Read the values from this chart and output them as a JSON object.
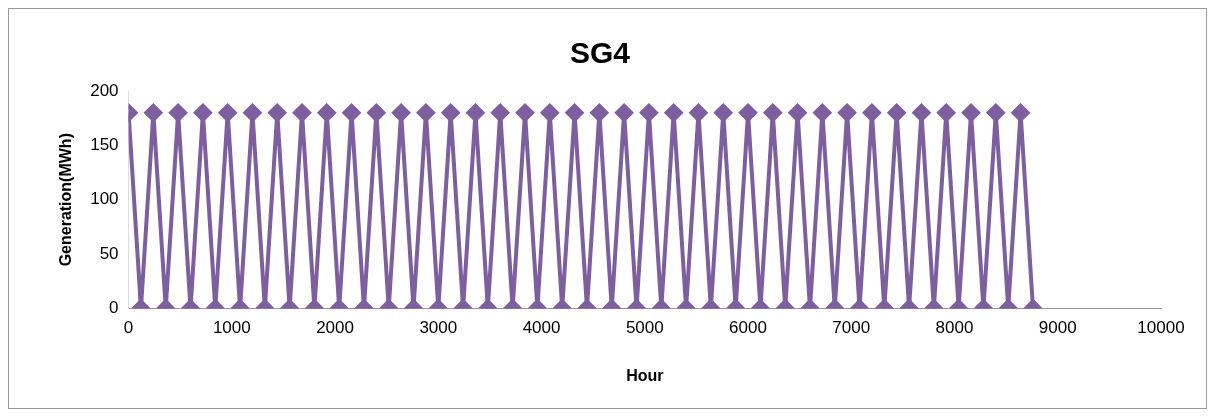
{
  "chart_data": {
    "type": "line",
    "title": "SG4",
    "xlabel": "Hour",
    "ylabel": "Generation(MWh)",
    "xlim": [
      0,
      10000
    ],
    "xticks": [
      0,
      1000,
      2000,
      3000,
      4000,
      5000,
      6000,
      7000,
      8000,
      9000,
      10000
    ],
    "ylim": [
      0,
      200
    ],
    "yticks": [
      0,
      50,
      100,
      150,
      200
    ],
    "grid": false,
    "legend": false,
    "marker": "diamond",
    "line_style": "solid",
    "series": [
      {
        "color": "#7d5fa0",
        "x": [
          0,
          120,
          240,
          360,
          480,
          600,
          720,
          840,
          960,
          1080,
          1200,
          1320,
          1440,
          1560,
          1680,
          1800,
          1920,
          2040,
          2160,
          2280,
          2400,
          2520,
          2640,
          2760,
          2880,
          3000,
          3120,
          3240,
          3360,
          3480,
          3600,
          3720,
          3840,
          3960,
          4080,
          4200,
          4320,
          4440,
          4560,
          4680,
          4800,
          4920,
          5040,
          5160,
          5280,
          5400,
          5520,
          5640,
          5760,
          5880,
          6000,
          6120,
          6240,
          6360,
          6480,
          6600,
          6720,
          6840,
          6960,
          7080,
          7200,
          7320,
          7440,
          7560,
          7680,
          7800,
          7920,
          8040,
          8160,
          8280,
          8400,
          8520,
          8640,
          8760
        ],
        "values": [
          180,
          0,
          180,
          0,
          180,
          0,
          180,
          0,
          180,
          0,
          180,
          0,
          180,
          0,
          180,
          0,
          180,
          0,
          180,
          0,
          180,
          0,
          180,
          0,
          180,
          0,
          180,
          0,
          180,
          0,
          180,
          0,
          180,
          0,
          180,
          0,
          180,
          0,
          180,
          0,
          180,
          0,
          180,
          0,
          180,
          0,
          180,
          0,
          180,
          0,
          180,
          0,
          180,
          0,
          180,
          0,
          180,
          0,
          180,
          0,
          180,
          0,
          180,
          0,
          180,
          0,
          180,
          0,
          180,
          0,
          180,
          0,
          180,
          0
        ]
      }
    ]
  }
}
